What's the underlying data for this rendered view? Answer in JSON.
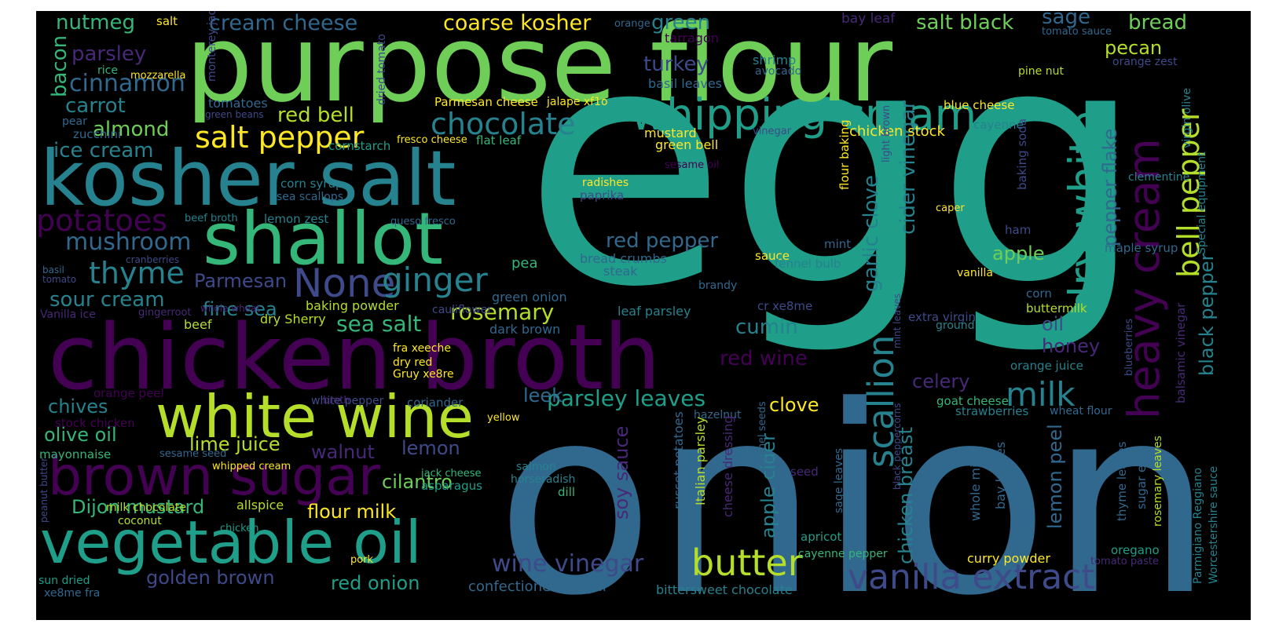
{
  "palette": {
    "background": "#000000",
    "dark_purple": "#440154",
    "purple": "#482878",
    "indigo": "#3e4a89",
    "blue": "#31688e",
    "teal_blue": "#26828e",
    "teal": "#1f9e89",
    "green": "#35b779",
    "light_green": "#6ece58",
    "lime": "#b5de2b",
    "yellow": "#fde725"
  },
  "words": [
    {
      "text": "egg",
      "color": "#1f9e89"
    },
    {
      "text": "onion",
      "color": "#31688e"
    },
    {
      "text": "purpose flour",
      "color": "#6ece58"
    },
    {
      "text": "chicken broth",
      "color": "#440154"
    },
    {
      "text": "kosher salt",
      "color": "#26828e"
    },
    {
      "text": "shallot",
      "color": "#35b779"
    },
    {
      "text": "vegetable oil",
      "color": "#1f9e89"
    },
    {
      "text": "white wine",
      "color": "#b5de2b"
    },
    {
      "text": "brown sugar",
      "color": "#440154"
    },
    {
      "text": "whipping cream",
      "color": "#1f9e89"
    },
    {
      "text": "heavy cream",
      "color": "#440154"
    },
    {
      "text": "dry white",
      "color": "#1f9e89"
    },
    {
      "text": "vanilla extract",
      "color": "#3e4a89"
    },
    {
      "text": "None",
      "color": "#3e4a89"
    },
    {
      "text": "ginger",
      "color": "#26828e"
    },
    {
      "text": "chocolate",
      "color": "#26828e"
    },
    {
      "text": "salt pepper",
      "color": "#fde725"
    },
    {
      "text": "bell pepper",
      "color": "#b5de2b"
    },
    {
      "text": "butter",
      "color": "#b5de2b"
    },
    {
      "text": "milk",
      "color": "#26828e"
    },
    {
      "text": "scallion",
      "color": "#26828e"
    },
    {
      "text": "potatoes",
      "color": "#440154"
    },
    {
      "text": "thyme",
      "color": "#26828e"
    },
    {
      "text": "mushroom",
      "color": "#31688e"
    },
    {
      "text": "cinnamon",
      "color": "#31688e"
    },
    {
      "text": "wine vinegar",
      "color": "#3e4a89"
    },
    {
      "text": "parsley leaves",
      "color": "#1f9e89"
    },
    {
      "text": "rosemary",
      "color": "#b5de2b"
    },
    {
      "text": "sea salt",
      "color": "#35b779"
    },
    {
      "text": "red pepper",
      "color": "#31688e"
    },
    {
      "text": "red wine",
      "color": "#440154"
    },
    {
      "text": "sour cream",
      "color": "#26828e"
    },
    {
      "text": "cumin",
      "color": "#26828e"
    },
    {
      "text": "garlic clove",
      "color": "#26828e"
    },
    {
      "text": "cider vinegar",
      "color": "#26828e"
    },
    {
      "text": "apple cider",
      "color": "#26828e"
    },
    {
      "text": "chicken breast",
      "color": "#26828e"
    },
    {
      "text": "lemon peel",
      "color": "#31688e"
    },
    {
      "text": "black pepper",
      "color": "#26828e"
    },
    {
      "text": "pepper flake",
      "color": "#31688e"
    },
    {
      "text": "coarse kosher",
      "color": "#fde725"
    },
    {
      "text": "cream cheese",
      "color": "#31688e"
    },
    {
      "text": "salt black",
      "color": "#6ece58"
    },
    {
      "text": "nutmeg",
      "color": "#35b779"
    },
    {
      "text": "parsley",
      "color": "#482878"
    },
    {
      "text": "bacon",
      "color": "#35b779"
    },
    {
      "text": "carrot",
      "color": "#26828e"
    },
    {
      "text": "almond",
      "color": "#6ece58"
    },
    {
      "text": "ice cream",
      "color": "#26828e"
    },
    {
      "text": "red bell",
      "color": "#b5de2b"
    },
    {
      "text": "green",
      "color": "#26828e"
    },
    {
      "text": "turkey",
      "color": "#3e4a89"
    },
    {
      "text": "sage",
      "color": "#31688e"
    },
    {
      "text": "bread",
      "color": "#6ece58"
    },
    {
      "text": "pecan",
      "color": "#b5de2b"
    },
    {
      "text": "apple",
      "color": "#6ece58"
    },
    {
      "text": "oil",
      "color": "#3e4a89"
    },
    {
      "text": "honey",
      "color": "#482878"
    },
    {
      "text": "celery",
      "color": "#482878"
    },
    {
      "text": "clove",
      "color": "#fde725"
    },
    {
      "text": "leek",
      "color": "#31688e"
    },
    {
      "text": "lemon",
      "color": "#3e4a89"
    },
    {
      "text": "walnut",
      "color": "#482878"
    },
    {
      "text": "cilantro",
      "color": "#6ece58"
    },
    {
      "text": "flour milk",
      "color": "#fde725"
    },
    {
      "text": "soy sauce",
      "color": "#482878"
    },
    {
      "text": "Parmesan",
      "color": "#3e4a89"
    },
    {
      "text": "fine sea",
      "color": "#26828e"
    },
    {
      "text": "chives",
      "color": "#26828e"
    },
    {
      "text": "olive oil",
      "color": "#35b779"
    },
    {
      "text": "lime juice",
      "color": "#b5de2b"
    },
    {
      "text": "Dijon mustard",
      "color": "#35b779"
    },
    {
      "text": "golden brown",
      "color": "#3e4a89"
    },
    {
      "text": "red onion",
      "color": "#1f9e89"
    },
    {
      "text": "confectioners sugar",
      "color": "#31688e"
    },
    {
      "text": "chicken stock",
      "color": "#fde725"
    },
    {
      "text": "blue cheese",
      "color": "#fde725"
    },
    {
      "text": "cayenne",
      "color": "#26828e"
    },
    {
      "text": "baking powder",
      "color": "#b5de2b"
    },
    {
      "text": "dry Sherry",
      "color": "#b5de2b"
    },
    {
      "text": "beef",
      "color": "#b5de2b"
    },
    {
      "text": "bread crumbs",
      "color": "#31688e"
    },
    {
      "text": "steak",
      "color": "#31688e"
    },
    {
      "text": "pea",
      "color": "#35b779"
    },
    {
      "text": "leaf parsley",
      "color": "#26828e"
    },
    {
      "text": "dark brown",
      "color": "#31688e"
    },
    {
      "text": "green onion",
      "color": "#31688e"
    },
    {
      "text": "cornstarch",
      "color": "#1f9e89"
    },
    {
      "text": "zucchini",
      "color": "#31688e"
    },
    {
      "text": "corn syrup",
      "color": "#26828e"
    },
    {
      "text": "sea scallops",
      "color": "#31688e"
    },
    {
      "text": "lemon zest",
      "color": "#26828e"
    },
    {
      "text": "beef broth",
      "color": "#26828e"
    },
    {
      "text": "queso fresco",
      "color": "#31688e"
    },
    {
      "text": "paprika",
      "color": "#3e4a89"
    },
    {
      "text": "radishes",
      "color": "#fde725"
    },
    {
      "text": "green bell",
      "color": "#fde725"
    },
    {
      "text": "mustard",
      "color": "#fde725"
    },
    {
      "text": "fresco cheese",
      "color": "#fde725"
    },
    {
      "text": "flat leaf",
      "color": "#35b779"
    },
    {
      "text": "shrimp",
      "color": "#26828e"
    },
    {
      "text": "avocado",
      "color": "#31688e"
    },
    {
      "text": "basil leaves",
      "color": "#31688e"
    },
    {
      "text": "tarragon",
      "color": "#440154"
    },
    {
      "text": "bay leaf",
      "color": "#482878"
    },
    {
      "text": "tomato sauce",
      "color": "#31688e"
    },
    {
      "text": "orange zest",
      "color": "#3e4a89"
    },
    {
      "text": "pine nut",
      "color": "#b5de2b"
    },
    {
      "text": "virgin olive",
      "color": "#26828e"
    },
    {
      "text": "clementine",
      "color": "#26828e"
    },
    {
      "text": "Special equipment",
      "color": "#26828e"
    },
    {
      "text": "maple syrup",
      "color": "#31688e"
    },
    {
      "text": "caper",
      "color": "#fde725"
    },
    {
      "text": "ham",
      "color": "#3e4a89"
    },
    {
      "text": "baking soda",
      "color": "#3e4a89"
    },
    {
      "text": "light brown",
      "color": "#3e4a89"
    },
    {
      "text": "flour baking",
      "color": "#fde725"
    },
    {
      "text": "sauce",
      "color": "#fde725"
    },
    {
      "text": "mint",
      "color": "#31688e"
    },
    {
      "text": "fennel bulb",
      "color": "#26828e"
    },
    {
      "text": "vanilla",
      "color": "#fde725"
    },
    {
      "text": "brandy",
      "color": "#31688e"
    },
    {
      "text": "corn",
      "color": "#31688e"
    },
    {
      "text": "buttermilk",
      "color": "#b5de2b"
    },
    {
      "text": "extra virgin",
      "color": "#3e4a89"
    },
    {
      "text": "ground",
      "color": "#26828e"
    },
    {
      "text": "cr xe8me",
      "color": "#3e4a89"
    },
    {
      "text": "mint leaves",
      "color": "#3e4a89"
    },
    {
      "text": "orange juice",
      "color": "#26828e"
    },
    {
      "text": "blueberries",
      "color": "#3e4a89"
    },
    {
      "text": "balsamic vinegar",
      "color": "#482878"
    },
    {
      "text": "goat cheese",
      "color": "#35b779"
    },
    {
      "text": "strawberries",
      "color": "#26828e"
    },
    {
      "text": "wheat flour",
      "color": "#31688e"
    },
    {
      "text": "hazelnut",
      "color": "#31688e"
    },
    {
      "text": "fennel seeds",
      "color": "#31688e"
    },
    {
      "text": "seed",
      "color": "#482878"
    },
    {
      "text": "sage leaves",
      "color": "#31688e"
    },
    {
      "text": "black peppercorns",
      "color": "#3e4a89"
    },
    {
      "text": "Italian parsley",
      "color": "#b5de2b"
    },
    {
      "text": "cheese dressing",
      "color": "#482878"
    },
    {
      "text": "russet potatoes",
      "color": "#31688e"
    },
    {
      "text": "whole milk",
      "color": "#31688e"
    },
    {
      "text": "bay leaves",
      "color": "#31688e"
    },
    {
      "text": "thyme leaves",
      "color": "#31688e"
    },
    {
      "text": "sugar egg",
      "color": "#31688e"
    },
    {
      "text": "rosemary leaves",
      "color": "#b5de2b"
    },
    {
      "text": "Parmigiano Reggiano",
      "color": "#26828e"
    },
    {
      "text": "Worcestershire sauce",
      "color": "#26828e"
    },
    {
      "text": "oregano",
      "color": "#1f9e89"
    },
    {
      "text": "curry powder",
      "color": "#fde725"
    },
    {
      "text": "tomato paste",
      "color": "#482878"
    },
    {
      "text": "apricot",
      "color": "#1f9e89"
    },
    {
      "text": "cayenne pepper",
      "color": "#35b779"
    },
    {
      "text": "bittersweet chocolate",
      "color": "#26828e"
    },
    {
      "text": "salmon",
      "color": "#26828e"
    },
    {
      "text": "horseradish",
      "color": "#26828e"
    },
    {
      "text": "dill",
      "color": "#35b779"
    },
    {
      "text": "jack cheese",
      "color": "#35b779"
    },
    {
      "text": "asparagus",
      "color": "#1f9e89"
    },
    {
      "text": "yellow",
      "color": "#fde725"
    },
    {
      "text": "coriander",
      "color": "#31688e"
    },
    {
      "text": "white pepper",
      "color": "#3e4a89"
    },
    {
      "text": "fra xeeche",
      "color": "#fde725"
    },
    {
      "text": "dry red",
      "color": "#fde725"
    },
    {
      "text": "Gruy xe8re",
      "color": "#fde725"
    },
    {
      "text": "cauliflower",
      "color": "#3e4a89"
    },
    {
      "text": "gingerroot",
      "color": "#482878"
    },
    {
      "text": "whole wheat",
      "color": "#482878"
    },
    {
      "text": "Vanilla ice",
      "color": "#482878"
    },
    {
      "text": "basil",
      "color": "#31688e"
    },
    {
      "text": "tomato",
      "color": "#3e4a89"
    },
    {
      "text": "cranberries",
      "color": "#3e4a89"
    },
    {
      "text": "orange peel",
      "color": "#440154"
    },
    {
      "text": "stock chicken",
      "color": "#440154"
    },
    {
      "text": "broth",
      "color": "#482878"
    },
    {
      "text": "mayonnaise",
      "color": "#35b779"
    },
    {
      "text": "sesame seed",
      "color": "#31688e"
    },
    {
      "text": "peanut butter",
      "color": "#3e4a89"
    },
    {
      "text": "rice",
      "color": "#35b779"
    },
    {
      "text": "mozzarella",
      "color": "#fde725"
    },
    {
      "text": "pear",
      "color": "#31688e"
    },
    {
      "text": "tomatoes",
      "color": "#31688e"
    },
    {
      "text": "green beans",
      "color": "#3e4a89"
    },
    {
      "text": "monterey jack",
      "color": "#3e4a89"
    },
    {
      "text": "dried tomato",
      "color": "#3e4a89"
    },
    {
      "text": "salt",
      "color": "#fde725"
    },
    {
      "text": "orange",
      "color": "#31688e"
    },
    {
      "text": "Parmesan cheese",
      "color": "#fde725"
    },
    {
      "text": "jalape xf1o",
      "color": "#fde725"
    },
    {
      "text": "vinegar",
      "color": "#3e4a89"
    },
    {
      "text": "sesame oil",
      "color": "#440154"
    },
    {
      "text": "whipped cream",
      "color": "#fde725"
    },
    {
      "text": "chicken",
      "color": "#1f9e89"
    },
    {
      "text": "milk chocolate",
      "color": "#b5de2b"
    },
    {
      "text": "coconut",
      "color": "#b5de2b"
    },
    {
      "text": "allspice",
      "color": "#b5de2b"
    },
    {
      "text": "pork",
      "color": "#fde725"
    },
    {
      "text": "sun dried",
      "color": "#1f9e89"
    },
    {
      "text": "xe8me fra",
      "color": "#31688e"
    }
  ]
}
